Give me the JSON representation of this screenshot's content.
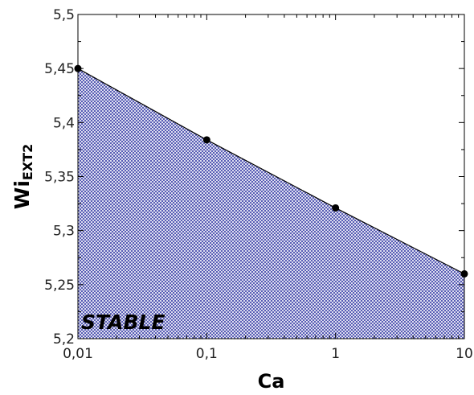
{
  "chart_data": {
    "type": "area",
    "x_scale": "log",
    "x": [
      0.01,
      0.1,
      1,
      10
    ],
    "y": [
      5.45,
      5.384,
      5.321,
      5.26
    ],
    "xlim": [
      0.01,
      10
    ],
    "ylim": [
      5.2,
      5.5
    ],
    "x_ticks": [
      0.01,
      0.1,
      1,
      10
    ],
    "x_tick_labels": [
      "0,01",
      "0,1",
      "1",
      "10"
    ],
    "y_ticks": [
      5.2,
      5.25,
      5.3,
      5.35,
      5.4,
      5.45,
      5.5
    ],
    "y_tick_labels": [
      "5,2",
      "5,25",
      "5,3",
      "5,35",
      "5,4",
      "5,45",
      "5,5"
    ],
    "xlabel": "Ca",
    "ylabel": {
      "main": "Wi",
      "subscript": "EXT2"
    },
    "region_label": "STABLE",
    "fill_pattern": "crosshatch",
    "colors": {
      "fill": "#3a3fa8",
      "line": "#000000",
      "marker": "#000000"
    },
    "grid": false
  }
}
